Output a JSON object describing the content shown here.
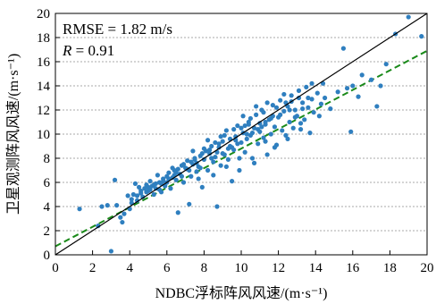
{
  "chart_data": {
    "type": "scatter",
    "title": "",
    "xlabel": "NDBC浮标阵风风速/(m·s⁻¹)",
    "ylabel": "卫星观测阵风风速/(m·s⁻¹)",
    "xlim": [
      0,
      20
    ],
    "ylim": [
      0,
      20
    ],
    "xticks": [
      0,
      2,
      4,
      6,
      8,
      10,
      12,
      14,
      16,
      18,
      20
    ],
    "yticks": [
      0,
      2,
      4,
      6,
      8,
      10,
      12,
      14,
      16,
      18,
      20
    ],
    "grid": "horizontal dotted",
    "annotations": {
      "rmse_text": "RMSE = 1.82 m/s",
      "r_symbol": "R",
      "r_value": " = 0.91"
    },
    "reference_line": {
      "name": "1:1",
      "slope": 1,
      "intercept": 0,
      "color": "#000000"
    },
    "fit_line": {
      "slope": 0.81,
      "intercept": 0.7,
      "color": "#1a8a1a",
      "style": "dashed"
    },
    "point_color": "#2f7fbf",
    "points": [
      [
        1.3,
        3.8
      ],
      [
        2.3,
        2.4
      ],
      [
        2.5,
        4.0
      ],
      [
        2.8,
        4.1
      ],
      [
        3.0,
        0.3
      ],
      [
        3.2,
        6.2
      ],
      [
        3.3,
        4.1
      ],
      [
        3.5,
        3.1
      ],
      [
        3.6,
        2.7
      ],
      [
        3.7,
        3.4
      ],
      [
        3.9,
        4.9
      ],
      [
        4.0,
        3.8
      ],
      [
        4.1,
        4.3
      ],
      [
        4.2,
        5.0
      ],
      [
        4.3,
        5.9
      ],
      [
        4.4,
        4.5
      ],
      [
        4.5,
        5.6
      ],
      [
        4.6,
        5.1
      ],
      [
        4.7,
        4.8
      ],
      [
        4.8,
        5.5
      ],
      [
        4.9,
        5.8
      ],
      [
        5.0,
        5.3
      ],
      [
        5.1,
        6.1
      ],
      [
        5.2,
        5.7
      ],
      [
        5.3,
        5.0
      ],
      [
        5.4,
        5.9
      ],
      [
        5.5,
        6.6
      ],
      [
        5.6,
        5.4
      ],
      [
        5.7,
        5.2
      ],
      [
        5.8,
        6.3
      ],
      [
        5.9,
        5.7
      ],
      [
        6.0,
        6.0
      ],
      [
        6.1,
        6.8
      ],
      [
        6.2,
        5.5
      ],
      [
        6.3,
        6.4
      ],
      [
        6.4,
        7.0
      ],
      [
        6.5,
        6.2
      ],
      [
        6.6,
        3.5
      ],
      [
        6.7,
        6.7
      ],
      [
        6.8,
        7.4
      ],
      [
        6.9,
        6.0
      ],
      [
        7.0,
        7.2
      ],
      [
        7.1,
        7.8
      ],
      [
        7.2,
        4.2
      ],
      [
        7.3,
        6.5
      ],
      [
        7.4,
        7.5
      ],
      [
        7.5,
        8.0
      ],
      [
        7.6,
        6.9
      ],
      [
        7.7,
        7.3
      ],
      [
        7.8,
        8.2
      ],
      [
        7.9,
        5.6
      ],
      [
        8.0,
        7.9
      ],
      [
        8.1,
        8.6
      ],
      [
        8.2,
        7.0
      ],
      [
        8.3,
        8.4
      ],
      [
        8.4,
        9.0
      ],
      [
        8.5,
        7.7
      ],
      [
        8.6,
        8.1
      ],
      [
        8.7,
        4.0
      ],
      [
        8.8,
        8.9
      ],
      [
        8.9,
        7.4
      ],
      [
        9.0,
        9.4
      ],
      [
        9.1,
        8.3
      ],
      [
        9.2,
        10.3
      ],
      [
        9.3,
        7.9
      ],
      [
        9.4,
        9.0
      ],
      [
        9.5,
        6.1
      ],
      [
        9.6,
        8.7
      ],
      [
        9.7,
        9.8
      ],
      [
        9.8,
        10.7
      ],
      [
        9.9,
        7.0
      ],
      [
        10.0,
        9.3
      ],
      [
        10.1,
        10.1
      ],
      [
        10.2,
        8.5
      ],
      [
        10.3,
        9.6
      ],
      [
        10.4,
        11.0
      ],
      [
        10.5,
        9.9
      ],
      [
        10.6,
        8.0
      ],
      [
        10.7,
        10.5
      ],
      [
        10.8,
        11.6
      ],
      [
        10.9,
        9.2
      ],
      [
        11.0,
        10.2
      ],
      [
        11.1,
        12.0
      ],
      [
        11.2,
        9.7
      ],
      [
        11.3,
        10.8
      ],
      [
        11.4,
        8.3
      ],
      [
        11.5,
        11.2
      ],
      [
        11.6,
        10.0
      ],
      [
        11.7,
        12.4
      ],
      [
        11.8,
        10.6
      ],
      [
        11.9,
        9.1
      ],
      [
        12.0,
        11.4
      ],
      [
        12.1,
        12.8
      ],
      [
        12.2,
        10.3
      ],
      [
        12.3,
        11.9
      ],
      [
        12.4,
        9.9
      ],
      [
        12.5,
        12.3
      ],
      [
        12.6,
        11.0
      ],
      [
        12.7,
        13.2
      ],
      [
        12.8,
        10.5
      ],
      [
        12.9,
        12.0
      ],
      [
        13.0,
        11.5
      ],
      [
        13.1,
        13.6
      ],
      [
        13.2,
        10.9
      ],
      [
        13.3,
        12.6
      ],
      [
        13.4,
        11.2
      ],
      [
        13.5,
        13.9
      ],
      [
        13.6,
        12.2
      ],
      [
        13.7,
        10.1
      ],
      [
        13.8,
        12.9
      ],
      [
        13.9,
        11.8
      ],
      [
        14.1,
        13.4
      ],
      [
        14.3,
        12.5
      ],
      [
        14.5,
        13.0
      ],
      [
        14.8,
        12.1
      ],
      [
        15.2,
        13.5
      ],
      [
        15.5,
        17.1
      ],
      [
        15.7,
        13.8
      ],
      [
        15.9,
        10.2
      ],
      [
        16.0,
        14.0
      ],
      [
        16.3,
        13.1
      ],
      [
        16.5,
        14.9
      ],
      [
        17.0,
        14.5
      ],
      [
        17.3,
        12.3
      ],
      [
        17.5,
        14.0
      ],
      [
        17.8,
        15.8
      ],
      [
        18.3,
        18.3
      ],
      [
        19.0,
        19.7
      ],
      [
        19.7,
        18.1
      ],
      [
        14.4,
        14.2
      ],
      [
        13.1,
        13.0
      ],
      [
        12.4,
        12.6
      ],
      [
        11.6,
        11.3
      ],
      [
        10.9,
        10.4
      ],
      [
        10.2,
        10.7
      ],
      [
        9.4,
        9.6
      ],
      [
        8.7,
        8.5
      ],
      [
        7.9,
        8.4
      ],
      [
        7.1,
        7.1
      ],
      [
        6.4,
        6.6
      ],
      [
        5.6,
        6.0
      ],
      [
        4.9,
        5.2
      ],
      [
        4.1,
        4.6
      ],
      [
        11.2,
        11.8
      ],
      [
        10.5,
        11.3
      ],
      [
        9.8,
        9.2
      ],
      [
        9.1,
        9.9
      ],
      [
        8.4,
        8.0
      ],
      [
        7.6,
        7.6
      ],
      [
        6.9,
        7.5
      ],
      [
        6.1,
        6.3
      ],
      [
        5.4,
        5.5
      ],
      [
        12.1,
        11.6
      ],
      [
        12.9,
        11.4
      ],
      [
        13.6,
        13.0
      ],
      [
        11.0,
        10.9
      ],
      [
        10.3,
        10.0
      ],
      [
        9.5,
        8.9
      ],
      [
        8.8,
        9.2
      ],
      [
        8.0,
        8.8
      ],
      [
        7.3,
        7.7
      ],
      [
        6.6,
        7.1
      ],
      [
        5.8,
        6.1
      ],
      [
        5.0,
        5.6
      ],
      [
        4.4,
        4.9
      ],
      [
        12.6,
        12.0
      ],
      [
        11.9,
        12.2
      ],
      [
        11.3,
        11.0
      ],
      [
        10.6,
        10.1
      ],
      [
        10.0,
        10.5
      ],
      [
        9.3,
        8.8
      ],
      [
        8.6,
        9.3
      ],
      [
        7.8,
        7.2
      ],
      [
        7.2,
        7.0
      ],
      [
        6.5,
        6.8
      ],
      [
        5.7,
        5.9
      ],
      [
        5.1,
        5.4
      ],
      [
        4.6,
        5.3
      ],
      [
        13.3,
        12.1
      ],
      [
        12.7,
        12.7
      ],
      [
        11.7,
        11.5
      ],
      [
        11.1,
        10.6
      ],
      [
        10.4,
        10.8
      ],
      [
        9.7,
        9.5
      ],
      [
        9.0,
        8.4
      ],
      [
        8.3,
        8.7
      ],
      [
        7.5,
        7.9
      ],
      [
        6.8,
        6.5
      ],
      [
        6.0,
        6.5
      ],
      [
        5.3,
        5.8
      ],
      [
        10.8,
        12.3
      ],
      [
        11.4,
        12.6
      ],
      [
        9.6,
        10.4
      ],
      [
        8.9,
        9.8
      ],
      [
        12.3,
        13.3
      ],
      [
        13.8,
        14.2
      ],
      [
        10.1,
        11.5
      ],
      [
        8.2,
        9.5
      ],
      [
        7.4,
        8.6
      ],
      [
        6.3,
        7.2
      ],
      [
        11.8,
        8.9
      ],
      [
        10.7,
        7.6
      ],
      [
        9.9,
        8.0
      ],
      [
        12.5,
        9.6
      ],
      [
        13.2,
        10.4
      ],
      [
        14.2,
        11.5
      ],
      [
        8.5,
        6.6
      ],
      [
        7.7,
        6.3
      ],
      [
        9.2,
        7.3
      ],
      [
        11.3,
        9.4
      ]
    ]
  }
}
